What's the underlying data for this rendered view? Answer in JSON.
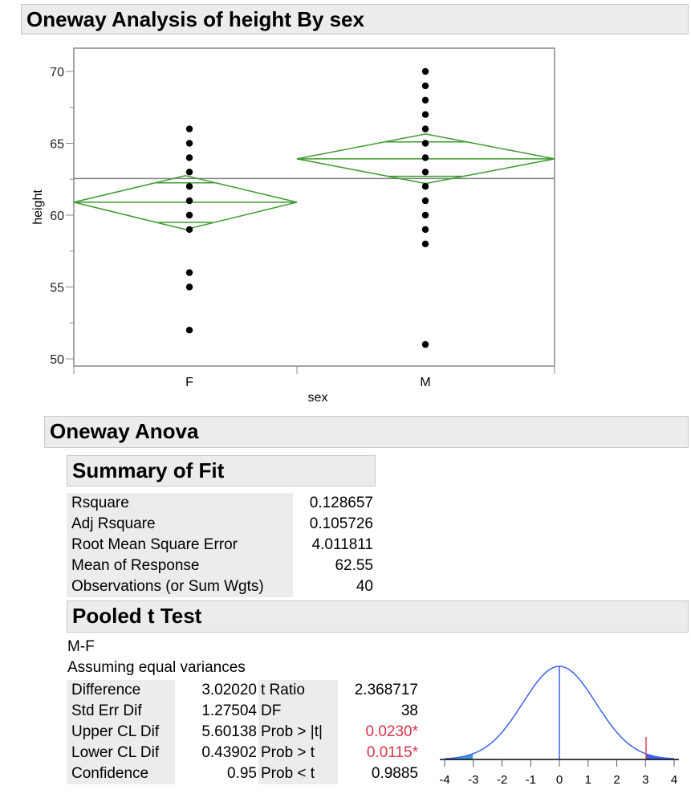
{
  "title": "Oneway Analysis of height By sex",
  "chart_data": {
    "type": "scatter",
    "title": "Oneway Analysis of height By sex",
    "xlabel": "sex",
    "ylabel": "height",
    "categories": [
      "F",
      "M"
    ],
    "ylim": [
      49.4,
      71.6
    ],
    "yticks": [
      50,
      55,
      60,
      65,
      70
    ],
    "grand_mean": 62.55,
    "series": [
      {
        "name": "F",
        "values": [
          66,
          65,
          64,
          63,
          62,
          61,
          60,
          59,
          56,
          55,
          52
        ]
      },
      {
        "name": "M",
        "values": [
          70,
          69,
          68,
          67,
          66,
          65,
          64,
          63,
          62,
          61,
          60,
          59,
          58,
          51
        ]
      }
    ],
    "means_diamonds": [
      {
        "group": "F",
        "mean": 60.9,
        "lower": 59.0,
        "upper": 62.75,
        "overlap_low": 59.5,
        "overlap_high": 62.25,
        "weight": 0.464
      },
      {
        "group": "M",
        "mean": 63.92,
        "lower": 62.2,
        "upper": 65.65,
        "overlap_low": 62.7,
        "overlap_high": 65.1,
        "weight": 0.536
      }
    ],
    "colors": {
      "diamond": "#3d9a2f",
      "points": "#000000",
      "mean_line": "#808080"
    }
  },
  "anova": {
    "title": "Oneway Anova",
    "summary": {
      "title": "Summary of Fit",
      "rows": [
        {
          "label": "Rsquare",
          "value": "0.128657"
        },
        {
          "label": "Adj Rsquare",
          "value": "0.105726"
        },
        {
          "label": "Root Mean Square Error",
          "value": "4.011811"
        },
        {
          "label": "Mean of Response",
          "value": "62.55"
        },
        {
          "label": "Observations (or Sum Wgts)",
          "value": "40"
        }
      ]
    },
    "ttest": {
      "title": "Pooled t Test",
      "contrast": "M-F",
      "assumption": "Assuming equal variances",
      "left": [
        {
          "label": "Difference",
          "value": "3.02020"
        },
        {
          "label": "Std Err Dif",
          "value": "1.27504"
        },
        {
          "label": "Upper CL Dif",
          "value": "5.60138"
        },
        {
          "label": "Lower CL Dif",
          "value": "0.43902"
        },
        {
          "label": "Confidence",
          "value": "0.95"
        }
      ],
      "right": [
        {
          "label": "t Ratio",
          "value": "2.368717",
          "significant": false
        },
        {
          "label": "DF",
          "value": "38",
          "significant": false
        },
        {
          "label": "Prob > |t|",
          "value": "0.0230*",
          "significant": true
        },
        {
          "label": "Prob > t",
          "value": "0.0115*",
          "significant": true
        },
        {
          "label": "Prob < t",
          "value": "0.9885",
          "significant": false
        }
      ],
      "dist_plot": {
        "xticks": [
          -4,
          -3,
          -2,
          -1,
          0,
          1,
          2,
          3,
          4
        ],
        "xlim": [
          -4,
          4
        ],
        "sd": 1.27504,
        "estimate": 3.0202,
        "colors": {
          "curve": "#3a62f0",
          "estimate": "#e0405a",
          "left_tail": "#3b9bd4",
          "right_tail": "#3a62f0"
        }
      }
    }
  }
}
